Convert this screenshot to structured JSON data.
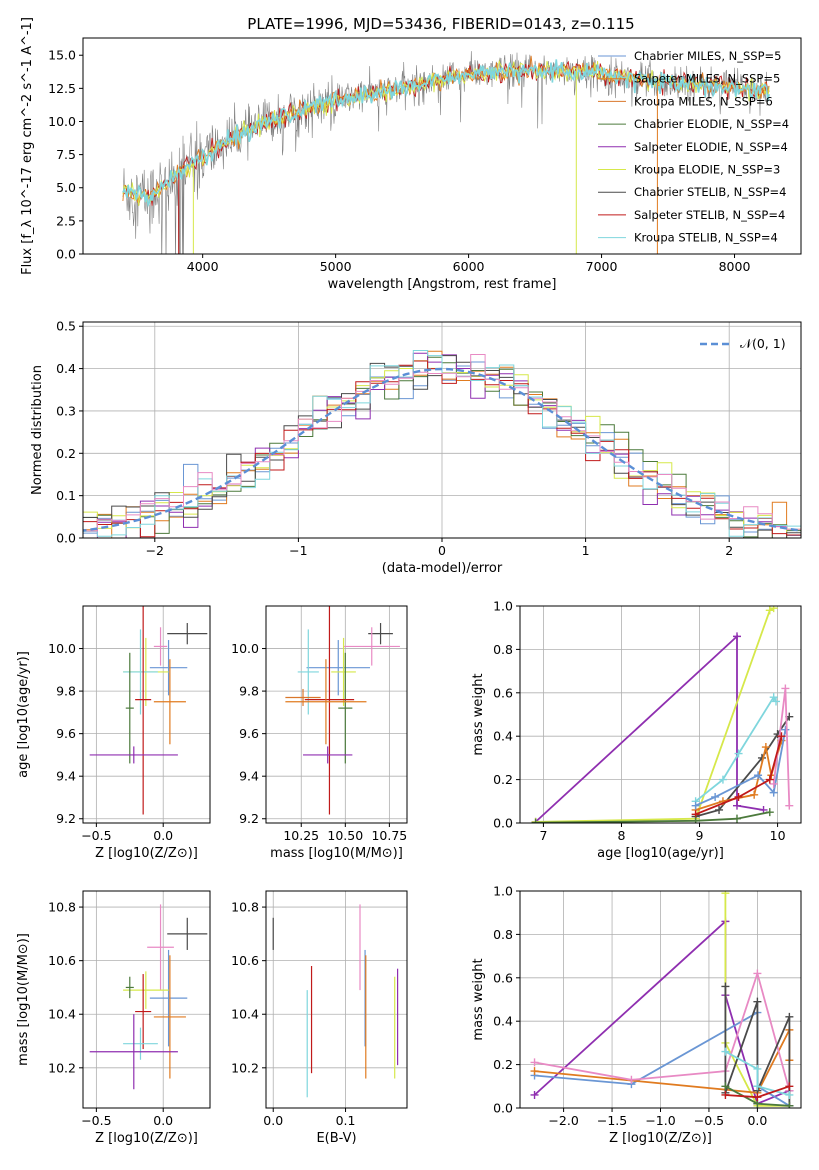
{
  "figure": {
    "title": "PLATE=1996, MJD=53436, FIBERID=0143, z=0.115"
  },
  "colors": {
    "chabrier_miles": "#6a96d4",
    "salpeter_miles": "#e07b20",
    "kroupa_miles": "#d9772b",
    "chabrier_elodie": "#4c7a3c",
    "salpeter_elodie": "#8f2fb0",
    "kroupa_elodie": "#d6e84a",
    "chabrier_stelib": "#4a4a4a",
    "salpeter_stelib": "#c01a1a",
    "kroupa_stelib": "#7fd6dd",
    "normal_curve": "#5b8fd6",
    "data": "#808080",
    "pink": "#e88ac4"
  },
  "chart_data": [
    {
      "id": "spectrum",
      "type": "line",
      "xlabel": "wavelength [Angstrom, rest frame]",
      "ylabel": "Flux [f_λ 10^-17 erg cm^-2 s^-1 A^-1]",
      "xlim": [
        3100,
        8500
      ],
      "ylim": [
        0,
        16.3
      ],
      "xticks": [
        4000,
        5000,
        6000,
        7000,
        8000
      ],
      "yticks": [
        0.0,
        2.5,
        5.0,
        7.5,
        10.0,
        12.5,
        15.0
      ],
      "continuum": [
        [
          3400,
          4.7
        ],
        [
          3600,
          4.3
        ],
        [
          3800,
          6.0
        ],
        [
          4000,
          7.3
        ],
        [
          4200,
          8.6
        ],
        [
          4400,
          9.6
        ],
        [
          4600,
          10.4
        ],
        [
          4800,
          11.0
        ],
        [
          5000,
          11.6
        ],
        [
          5200,
          12.0
        ],
        [
          5400,
          12.3
        ],
        [
          5600,
          12.7
        ],
        [
          5800,
          13.3
        ],
        [
          6000,
          13.6
        ],
        [
          6200,
          13.7
        ],
        [
          6400,
          13.8
        ],
        [
          6600,
          13.9
        ],
        [
          6800,
          13.8
        ],
        [
          7000,
          13.6
        ],
        [
          7200,
          13.3
        ],
        [
          7400,
          13.1
        ],
        [
          7600,
          13.0
        ],
        [
          7800,
          12.8
        ],
        [
          8000,
          12.6
        ],
        [
          8200,
          12.4
        ],
        [
          8260,
          12.3
        ]
      ],
      "legend": [
        {
          "label": "Chabrier MILES, N_SSP=5",
          "color_key": "chabrier_miles"
        },
        {
          "label": "Salpeter MILES, N_SSP=5",
          "color_key": "salpeter_miles"
        },
        {
          "label": "Kroupa MILES, N_SSP=6",
          "color_key": "kroupa_miles"
        },
        {
          "label": "Chabrier ELODIE, N_SSP=4",
          "color_key": "chabrier_elodie"
        },
        {
          "label": "Salpeter ELODIE, N_SSP=4",
          "color_key": "salpeter_elodie"
        },
        {
          "label": "Kroupa ELODIE, N_SSP=3",
          "color_key": "kroupa_elodie"
        },
        {
          "label": "Chabrier STELIB, N_SSP=4",
          "color_key": "chabrier_stelib"
        },
        {
          "label": "Salpeter STELIB, N_SSP=4",
          "color_key": "salpeter_stelib"
        },
        {
          "label": "Kroupa STELIB, N_SSP=4",
          "color_key": "kroupa_stelib"
        }
      ]
    },
    {
      "id": "residuals",
      "type": "histogram",
      "xlabel": "(data-model)/error",
      "ylabel": "Normed distribution",
      "xlim": [
        -2.5,
        2.5
      ],
      "ylim": [
        0,
        0.51
      ],
      "xticks": [
        -2,
        -1,
        0,
        1,
        2
      ],
      "yticks": [
        0.0,
        0.1,
        0.2,
        0.3,
        0.4,
        0.5
      ],
      "legend_label": "𝒩(0, 1)",
      "bin_width": 0.1
    },
    {
      "id": "age_vs_z",
      "type": "errorbar",
      "xlabel": "Z [log10(Z/Z⊙)]",
      "ylabel": "age  [log10(age/yr)]",
      "xlim": [
        -0.6,
        0.35
      ],
      "ylim": [
        9.18,
        10.2
      ],
      "xticks": [
        -0.5,
        0.0
      ],
      "yticks": [
        9.2,
        9.4,
        9.6,
        9.8,
        10.0
      ],
      "points": [
        {
          "x": 0.18,
          "y": 10.07,
          "xerr": 0.15,
          "yerr": 0.05,
          "color_key": "chabrier_stelib"
        },
        {
          "x": -0.02,
          "y": 10.01,
          "xerr": 0.05,
          "yerr": 0.09,
          "color_key": "pink"
        },
        {
          "x": 0.04,
          "y": 9.91,
          "xerr": 0.14,
          "yerr": 0.13,
          "color_key": "chabrier_miles"
        },
        {
          "x": -0.13,
          "y": 9.89,
          "xerr": 0.17,
          "yerr": 0.16,
          "color_key": "kroupa_elodie"
        },
        {
          "x": -0.17,
          "y": 9.89,
          "xerr": 0.13,
          "yerr": 0.2,
          "color_key": "kroupa_stelib"
        },
        {
          "x": -0.25,
          "y": 9.72,
          "xerr": 0.03,
          "yerr": 0.26,
          "color_key": "chabrier_elodie"
        },
        {
          "x": -0.15,
          "y": 9.76,
          "xerr": 0.06,
          "yerr": 0.54,
          "color_key": "salpeter_stelib"
        },
        {
          "x": 0.05,
          "y": 9.75,
          "xerr": 0.12,
          "yerr": 0.2,
          "color_key": "salpeter_miles"
        },
        {
          "x": -0.22,
          "y": 9.5,
          "xerr": 0.33,
          "yerr": 0.04,
          "color_key": "salpeter_elodie"
        }
      ]
    },
    {
      "id": "age_vs_mass",
      "type": "errorbar",
      "xlabel": "mass [log10(M/M⊙)]",
      "ylabel": "",
      "xlim": [
        10.05,
        10.85
      ],
      "ylim": [
        9.18,
        10.2
      ],
      "xticks": [
        10.25,
        10.5,
        10.75
      ],
      "yticks": [
        9.2,
        9.4,
        9.6,
        9.8,
        10.0
      ],
      "points": [
        {
          "x": 10.7,
          "y": 10.07,
          "xerr": 0.07,
          "yerr": 0.05,
          "color_key": "chabrier_stelib"
        },
        {
          "x": 10.65,
          "y": 10.01,
          "xerr": 0.16,
          "yerr": 0.09,
          "color_key": "pink"
        },
        {
          "x": 10.46,
          "y": 9.91,
          "xerr": 0.18,
          "yerr": 0.13,
          "color_key": "chabrier_miles"
        },
        {
          "x": 10.49,
          "y": 9.89,
          "xerr": 0.07,
          "yerr": 0.16,
          "color_key": "kroupa_elodie"
        },
        {
          "x": 10.29,
          "y": 9.89,
          "xerr": 0.06,
          "yerr": 0.2,
          "color_key": "kroupa_stelib"
        },
        {
          "x": 10.5,
          "y": 9.72,
          "xerr": 0.04,
          "yerr": 0.26,
          "color_key": "chabrier_elodie"
        },
        {
          "x": 10.41,
          "y": 9.76,
          "xerr": 0.14,
          "yerr": 0.54,
          "color_key": "salpeter_stelib"
        },
        {
          "x": 10.39,
          "y": 9.75,
          "xerr": 0.23,
          "yerr": 0.2,
          "color_key": "salpeter_miles"
        },
        {
          "x": 10.26,
          "y": 9.77,
          "xerr": 0.1,
          "yerr": 0.04,
          "color_key": "kroupa_miles"
        },
        {
          "x": 10.4,
          "y": 9.5,
          "xerr": 0.14,
          "yerr": 0.04,
          "color_key": "salpeter_elodie"
        }
      ]
    },
    {
      "id": "weight_vs_age",
      "type": "line",
      "xlabel": "age  [log10(age/yr)]",
      "ylabel": "mass weight",
      "xlim": [
        6.7,
        10.3
      ],
      "ylim": [
        0,
        1.0
      ],
      "xticks": [
        7,
        8,
        9,
        10
      ],
      "yticks": [
        0.0,
        0.2,
        0.4,
        0.6,
        0.8,
        1.0
      ],
      "series": [
        {
          "color_key": "salpeter_elodie",
          "points": [
            [
              6.9,
              0.005
            ],
            [
              9.48,
              0.86
            ],
            [
              9.48,
              0.08
            ],
            [
              9.82,
              0.06
            ]
          ]
        },
        {
          "color_key": "kroupa_elodie",
          "points": [
            [
              6.9,
              0.005
            ],
            [
              8.95,
              0.02
            ],
            [
              9.9,
              0.98
            ],
            [
              9.95,
              0.99
            ]
          ]
        },
        {
          "color_key": "kroupa_stelib",
          "points": [
            [
              8.95,
              0.1
            ],
            [
              9.3,
              0.2
            ],
            [
              9.5,
              0.32
            ],
            [
              9.95,
              0.58
            ],
            [
              9.98,
              0.56
            ]
          ]
        },
        {
          "color_key": "chabrier_stelib",
          "points": [
            [
              8.95,
              0.03
            ],
            [
              9.25,
              0.06
            ],
            [
              9.8,
              0.3
            ],
            [
              10.0,
              0.41
            ],
            [
              10.15,
              0.49
            ]
          ]
        },
        {
          "color_key": "salpeter_miles",
          "points": [
            [
              8.95,
              0.06
            ],
            [
              9.3,
              0.1
            ],
            [
              9.7,
              0.13
            ],
            [
              9.85,
              0.35
            ],
            [
              9.92,
              0.22
            ],
            [
              10.05,
              0.38
            ]
          ]
        },
        {
          "color_key": "chabrier_miles",
          "points": [
            [
              8.95,
              0.08
            ],
            [
              9.2,
              0.12
            ],
            [
              9.75,
              0.22
            ],
            [
              9.95,
              0.14
            ],
            [
              10.1,
              0.43
            ]
          ]
        },
        {
          "color_key": "pink",
          "points": [
            [
              9.95,
              0.18
            ],
            [
              10.1,
              0.62
            ],
            [
              10.15,
              0.08
            ]
          ]
        },
        {
          "color_key": "salpeter_stelib",
          "points": [
            [
              8.95,
              0.04
            ],
            [
              9.5,
              0.12
            ],
            [
              9.9,
              0.2
            ],
            [
              10.05,
              0.4
            ]
          ]
        },
        {
          "color_key": "chabrier_elodie",
          "points": [
            [
              6.9,
              0.002
            ],
            [
              8.95,
              0.01
            ],
            [
              9.48,
              0.02
            ],
            [
              9.9,
              0.05
            ]
          ]
        }
      ]
    },
    {
      "id": "mass_vs_z",
      "type": "errorbar",
      "xlabel": "Z [log10(Z/Z⊙)]",
      "ylabel": "mass [log10(M/M⊙)]",
      "xlim": [
        -0.6,
        0.35
      ],
      "ylim": [
        10.05,
        10.86
      ],
      "xticks": [
        -0.5,
        0.0
      ],
      "yticks": [
        10.2,
        10.4,
        10.6,
        10.8
      ],
      "points": [
        {
          "x": 0.18,
          "y": 10.7,
          "xerr": 0.15,
          "yerr": 0.06,
          "color_key": "chabrier_stelib"
        },
        {
          "x": -0.02,
          "y": 10.65,
          "xerr": 0.1,
          "yerr": 0.16,
          "color_key": "pink"
        },
        {
          "x": 0.04,
          "y": 10.46,
          "xerr": 0.14,
          "yerr": 0.18,
          "color_key": "chabrier_miles"
        },
        {
          "x": -0.13,
          "y": 10.49,
          "xerr": 0.17,
          "yerr": 0.07,
          "color_key": "kroupa_elodie"
        },
        {
          "x": -0.25,
          "y": 10.5,
          "xerr": 0.03,
          "yerr": 0.04,
          "color_key": "chabrier_elodie"
        },
        {
          "x": -0.15,
          "y": 10.41,
          "xerr": 0.06,
          "yerr": 0.14,
          "color_key": "salpeter_stelib"
        },
        {
          "x": 0.05,
          "y": 10.39,
          "xerr": 0.12,
          "yerr": 0.23,
          "color_key": "salpeter_miles"
        },
        {
          "x": -0.17,
          "y": 10.29,
          "xerr": 0.13,
          "yerr": 0.06,
          "color_key": "kroupa_stelib"
        },
        {
          "x": -0.22,
          "y": 10.26,
          "xerr": 0.33,
          "yerr": 0.14,
          "color_key": "salpeter_elodie"
        }
      ]
    },
    {
      "id": "mass_vs_ebv",
      "type": "errorbar",
      "xlabel": "E(B-V)",
      "ylabel": "",
      "xlim": [
        -0.01,
        0.185
      ],
      "ylim": [
        10.05,
        10.86
      ],
      "xticks": [
        0.0,
        0.1
      ],
      "yticks": [
        10.2,
        10.4,
        10.6,
        10.8
      ],
      "points": [
        {
          "x": 0.0,
          "y": 10.7,
          "xerr": 0,
          "yerr": 0.06,
          "color_key": "chabrier_stelib"
        },
        {
          "x": 0.12,
          "y": 10.65,
          "xerr": 0,
          "yerr": 0.16,
          "color_key": "pink"
        },
        {
          "x": 0.127,
          "y": 10.46,
          "xerr": 0,
          "yerr": 0.18,
          "color_key": "chabrier_miles"
        },
        {
          "x": 0.168,
          "y": 10.35,
          "xerr": 0,
          "yerr": 0.19,
          "color_key": "kroupa_elodie"
        },
        {
          "x": 0.172,
          "y": 10.39,
          "xerr": 0,
          "yerr": 0.18,
          "color_key": "salpeter_elodie"
        },
        {
          "x": 0.053,
          "y": 10.38,
          "xerr": 0,
          "yerr": 0.2,
          "color_key": "salpeter_stelib"
        },
        {
          "x": 0.128,
          "y": 10.39,
          "xerr": 0,
          "yerr": 0.23,
          "color_key": "salpeter_miles"
        },
        {
          "x": 0.047,
          "y": 10.29,
          "xerr": 0,
          "yerr": 0.2,
          "color_key": "kroupa_stelib"
        }
      ]
    },
    {
      "id": "weight_vs_z",
      "type": "line",
      "xlabel": "Z [log10(Z/Z⊙)]",
      "ylabel": "mass weight",
      "xlim": [
        -2.45,
        0.45
      ],
      "ylim": [
        0,
        1.0
      ],
      "xticks": [
        -2.0,
        -1.5,
        -1.0,
        -0.5,
        0.0
      ],
      "yticks": [
        0.0,
        0.2,
        0.4,
        0.6,
        0.8,
        1.0
      ],
      "series": [
        {
          "color_key": "salpeter_elodie",
          "points": [
            [
              -2.3,
              0.06
            ],
            [
              -0.33,
              0.86
            ],
            [
              -0.33,
              0.52
            ],
            [
              0.0,
              0.02
            ],
            [
              0.33,
              0.08
            ]
          ]
        },
        {
          "color_key": "kroupa_elodie",
          "points": [
            [
              -0.33,
              0.99
            ],
            [
              -0.33,
              0.3
            ],
            [
              0.0,
              0.01
            ],
            [
              0.33,
              0.01
            ]
          ]
        },
        {
          "color_key": "chabrier_miles",
          "points": [
            [
              -2.3,
              0.15
            ],
            [
              -1.3,
              0.11
            ],
            [
              0.0,
              0.44
            ],
            [
              0.0,
              0.1
            ],
            [
              0.33,
              0.01
            ]
          ]
        },
        {
          "color_key": "salpeter_miles",
          "points": [
            [
              -2.3,
              0.17
            ],
            [
              0.0,
              0.07
            ],
            [
              0.33,
              0.36
            ],
            [
              0.33,
              0.22
            ]
          ]
        },
        {
          "color_key": "pink",
          "points": [
            [
              -2.3,
              0.21
            ],
            [
              -1.3,
              0.13
            ],
            [
              -0.33,
              0.17
            ],
            [
              0.0,
              0.62
            ],
            [
              0.33,
              0.08
            ]
          ]
        },
        {
          "color_key": "chabrier_stelib",
          "points": [
            [
              -0.33,
              0.56
            ],
            [
              -0.33,
              0.07
            ],
            [
              0.0,
              0.49
            ],
            [
              0.0,
              0.08
            ],
            [
              0.33,
              0.42
            ],
            [
              0.33,
              0.01
            ]
          ]
        },
        {
          "color_key": "kroupa_stelib",
          "points": [
            [
              -0.33,
              0.26
            ],
            [
              0.0,
              0.18
            ],
            [
              0.0,
              0.1
            ],
            [
              0.33,
              0.06
            ]
          ]
        },
        {
          "color_key": "chabrier_elodie",
          "points": [
            [
              -0.33,
              0.1
            ],
            [
              0.0,
              0.02
            ],
            [
              0.33,
              0.01
            ]
          ]
        },
        {
          "color_key": "salpeter_stelib",
          "points": [
            [
              -0.33,
              0.06
            ],
            [
              0.0,
              0.05
            ],
            [
              0.33,
              0.1
            ]
          ]
        }
      ]
    }
  ]
}
